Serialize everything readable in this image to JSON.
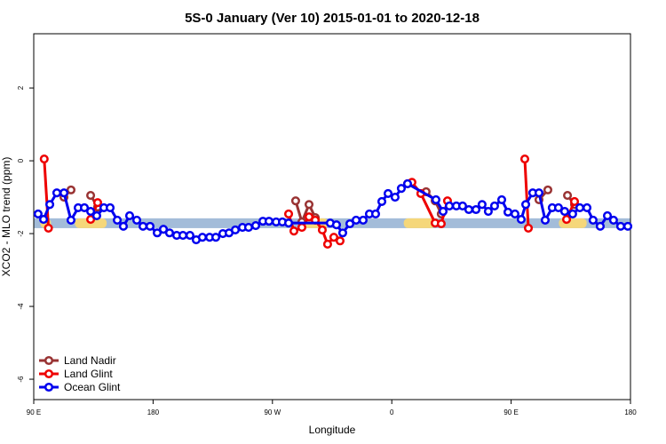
{
  "chart_data": {
    "type": "line",
    "title": "5S-0 January (Ver 10)   2015-01-01 to 2020-12-18",
    "x_label": "Longitude",
    "y_label": "XCO2 - MLO trend (ppm)",
    "xlim": [
      90,
      540
    ],
    "ylim": [
      -6.56,
      3.49
    ],
    "xticks": [
      {
        "value": 90,
        "label": "90 E"
      },
      180,
      {
        "value": 270,
        "label": "90 W"
      },
      {
        "value": 360,
        "label": "0"
      },
      {
        "value": 450,
        "label": "90 E"
      },
      {
        "value": 540,
        "label": "180"
      }
    ],
    "yticks": [
      -6,
      -4,
      -2,
      0,
      2
    ],
    "legend": "bottom-left",
    "band": {
      "range": [
        -1.85,
        -1.58
      ],
      "color": "#a3bcd9"
    },
    "highlights": {
      "color": "#f5d77a",
      "ranges": [
        [
          95,
          103
        ],
        [
          121,
          145
        ],
        [
          292,
          312
        ],
        [
          369,
          393
        ],
        [
          486,
          507
        ]
      ]
    },
    "series": [
      {
        "name": "Land Nadir",
        "color": "#993333",
        "x": [
          112.8,
          118.1,
          null,
          132.9,
          138.2,
          null,
          287.5,
          292.2,
          297.6,
          302.3,
          null,
          385.9,
          392.7,
          397.3,
          null,
          471.0,
          477.7,
          null,
          492.5,
          497.8
        ],
        "values": [
          -1.0,
          -0.8,
          null,
          -0.95,
          -1.27,
          null,
          -1.1,
          -1.68,
          -1.2,
          -1.56,
          null,
          -0.85,
          -1.1,
          -1.46,
          null,
          -1.07,
          -0.8,
          null,
          -0.95,
          -1.2
        ]
      },
      {
        "name": "Land Glint",
        "color": "#ee0000",
        "x": [
          97.9,
          101.1,
          null,
          132.9,
          138.2,
          null,
          282.2,
          286.2,
          292.2,
          297.6,
          302.3,
          307.6,
          311.6,
          316.3,
          321.0,
          null,
          371.9,
          375.2,
          381.9,
          392.7,
          397.3,
          402.0,
          null,
          460.3,
          463.0,
          null,
          491.8,
          497.8
        ],
        "values": [
          0.05,
          -1.85,
          null,
          -1.61,
          -1.15,
          null,
          -1.46,
          -1.93,
          -1.83,
          -1.54,
          -1.63,
          -1.9,
          -2.29,
          -2.1,
          -2.2,
          null,
          -0.63,
          -0.59,
          -0.9,
          -1.71,
          -1.73,
          -1.1,
          null,
          0.05,
          -1.85,
          null,
          -1.61,
          -1.12
        ]
      },
      {
        "name": "Ocean Glint",
        "color": "#0000ee",
        "x": [
          93.3,
          97.4,
          102.1,
          107.4,
          112.8,
          118.1,
          123.5,
          128.2,
          132.9,
          137.5,
          142.9,
          147.6,
          153.0,
          157.6,
          162.3,
          167.7,
          172.4,
          177.7,
          183.1,
          187.8,
          192.4,
          197.8,
          202.5,
          207.8,
          212.5,
          217.2,
          222.6,
          227.3,
          232.6,
          237.3,
          242.0,
          247.4,
          252.0,
          257.4,
          262.8,
          267.4,
          272.8,
          277.5,
          282.2,
          313.6,
          318.3,
          323.0,
          328.4,
          333.1,
          338.4,
          343.1,
          347.8,
          352.5,
          357.2,
          362.5,
          367.2,
          371.9,
          393.3,
          398.7,
          403.4,
          408.7,
          413.4,
          418.1,
          423.5,
          428.1,
          432.8,
          437.5,
          442.9,
          447.6,
          452.9,
          457.6,
          461.0,
          466.3,
          471.0,
          475.7,
          481.0,
          485.7,
          490.4,
          496.4,
          501.8,
          507.2,
          511.8,
          517.2,
          522.6,
          527.2,
          532.6,
          538.0
        ],
        "values": [
          -1.46,
          -1.61,
          -1.2,
          -0.88,
          -0.88,
          -1.63,
          -1.29,
          -1.29,
          -1.39,
          -1.51,
          -1.29,
          -1.29,
          -1.63,
          -1.8,
          -1.51,
          -1.63,
          -1.8,
          -1.8,
          -1.98,
          -1.88,
          -1.98,
          -2.05,
          -2.05,
          -2.05,
          -2.17,
          -2.1,
          -2.1,
          -2.1,
          -2.0,
          -1.98,
          -1.9,
          -1.83,
          -1.83,
          -1.78,
          -1.66,
          -1.66,
          -1.68,
          -1.68,
          -1.71,
          -1.71,
          -1.76,
          -1.98,
          -1.73,
          -1.63,
          -1.63,
          -1.46,
          -1.46,
          -1.12,
          -0.9,
          -1.0,
          -0.76,
          -0.63,
          -1.07,
          -1.39,
          -1.24,
          -1.24,
          -1.24,
          -1.34,
          -1.34,
          -1.2,
          -1.39,
          -1.24,
          -1.07,
          -1.41,
          -1.46,
          -1.61,
          -1.2,
          -0.88,
          -0.88,
          -1.63,
          -1.29,
          -1.29,
          -1.39,
          -1.46,
          -1.29,
          -1.29,
          -1.63,
          -1.8,
          -1.51,
          -1.63,
          -1.8,
          -1.8
        ]
      }
    ]
  }
}
